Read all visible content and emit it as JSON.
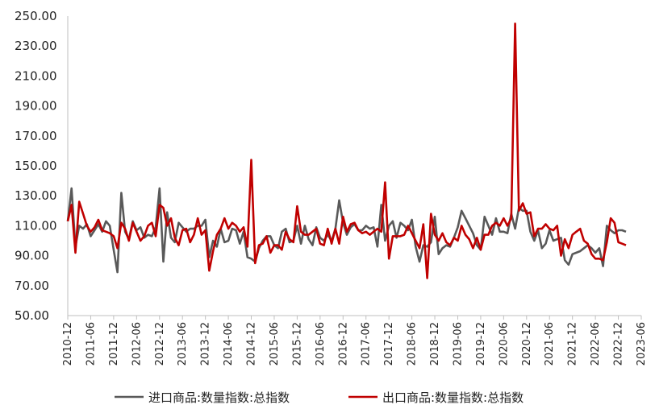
{
  "chart_data": {
    "type": "line",
    "yticks": [
      "250.00",
      "230.00",
      "210.00",
      "190.00",
      "170.00",
      "150.00",
      "130.00",
      "110.00",
      "90.00",
      "70.00",
      "50.00"
    ],
    "ylim": [
      50,
      250
    ],
    "xlim": [
      "2010-12",
      "2023-06"
    ],
    "x_tick_labels": [
      "2010-12",
      "2011-06",
      "2011-12",
      "2012-06",
      "2012-12",
      "2013-06",
      "2013-12",
      "2014-06",
      "2014-12",
      "2015-06",
      "2015-12",
      "2016-06",
      "2016-12",
      "2017-06",
      "2017-12",
      "2018-06",
      "2018-12",
      "2019-06",
      "2019-12",
      "2020-06",
      "2020-12",
      "2021-06",
      "2021-12",
      "2022-06",
      "2022-12",
      "2023-06"
    ],
    "legend_position": "bottom",
    "grid": false,
    "series": [
      {
        "name": "进口商品:数量指数:总指数",
        "color": "#595959",
        "points": [
          [
            "2010-12",
            113
          ],
          [
            "2011-01",
            135
          ],
          [
            "2011-02",
            96
          ],
          [
            "2011-03",
            110
          ],
          [
            "2011-04",
            108
          ],
          [
            "2011-05",
            111
          ],
          [
            "2011-06",
            103
          ],
          [
            "2011-07",
            107
          ],
          [
            "2011-08",
            111
          ],
          [
            "2011-09",
            106
          ],
          [
            "2011-10",
            113
          ],
          [
            "2011-11",
            110
          ],
          [
            "2011-12",
            94
          ],
          [
            "2012-01",
            79
          ],
          [
            "2012-02",
            132
          ],
          [
            "2012-03",
            106
          ],
          [
            "2012-04",
            101
          ],
          [
            "2012-05",
            113
          ],
          [
            "2012-06",
            107
          ],
          [
            "2012-07",
            109
          ],
          [
            "2012-08",
            102
          ],
          [
            "2012-09",
            104
          ],
          [
            "2012-10",
            103
          ],
          [
            "2012-11",
            109
          ],
          [
            "2012-12",
            135
          ],
          [
            "2013-01",
            86
          ],
          [
            "2013-02",
            119
          ],
          [
            "2013-03",
            102
          ],
          [
            "2013-04",
            99
          ],
          [
            "2013-05",
            112
          ],
          [
            "2013-06",
            109
          ],
          [
            "2013-07",
            106
          ],
          [
            "2013-08",
            108
          ],
          [
            "2013-09",
            108
          ],
          [
            "2013-10",
            110
          ],
          [
            "2013-11",
            110
          ],
          [
            "2013-12",
            114
          ],
          [
            "2014-01",
            89
          ],
          [
            "2014-02",
            100
          ],
          [
            "2014-03",
            96
          ],
          [
            "2014-04",
            108
          ],
          [
            "2014-05",
            99
          ],
          [
            "2014-06",
            100
          ],
          [
            "2014-07",
            108
          ],
          [
            "2014-08",
            107
          ],
          [
            "2014-09",
            98
          ],
          [
            "2014-10",
            106
          ],
          [
            "2014-11",
            89
          ],
          [
            "2014-12",
            88
          ],
          [
            "2015-01",
            86
          ],
          [
            "2015-02",
            95
          ],
          [
            "2015-03",
            100
          ],
          [
            "2015-04",
            103
          ],
          [
            "2015-05",
            103
          ],
          [
            "2015-06",
            97
          ],
          [
            "2015-07",
            95
          ],
          [
            "2015-08",
            106
          ],
          [
            "2015-09",
            108
          ],
          [
            "2015-10",
            99
          ],
          [
            "2015-11",
            100
          ],
          [
            "2015-12",
            110
          ],
          [
            "2016-01",
            98
          ],
          [
            "2016-02",
            110
          ],
          [
            "2016-03",
            101
          ],
          [
            "2016-04",
            97
          ],
          [
            "2016-05",
            109
          ],
          [
            "2016-06",
            102
          ],
          [
            "2016-07",
            100
          ],
          [
            "2016-08",
            104
          ],
          [
            "2016-09",
            100
          ],
          [
            "2016-10",
            108
          ],
          [
            "2016-11",
            127
          ],
          [
            "2016-12",
            112
          ],
          [
            "2017-01",
            104
          ],
          [
            "2017-02",
            109
          ],
          [
            "2017-03",
            111
          ],
          [
            "2017-04",
            107
          ],
          [
            "2017-05",
            107
          ],
          [
            "2017-06",
            110
          ],
          [
            "2017-07",
            108
          ],
          [
            "2017-08",
            109
          ],
          [
            "2017-09",
            96
          ],
          [
            "2017-10",
            124
          ],
          [
            "2017-11",
            100
          ],
          [
            "2017-12",
            110
          ],
          [
            "2018-01",
            113
          ],
          [
            "2018-02",
            102
          ],
          [
            "2018-03",
            112
          ],
          [
            "2018-04",
            110
          ],
          [
            "2018-05",
            107
          ],
          [
            "2018-06",
            114
          ],
          [
            "2018-07",
            96
          ],
          [
            "2018-08",
            86
          ],
          [
            "2018-09",
            97
          ],
          [
            "2018-10",
            96
          ],
          [
            "2018-11",
            99
          ],
          [
            "2018-12",
            116
          ],
          [
            "2019-01",
            91
          ],
          [
            "2019-02",
            95
          ],
          [
            "2019-03",
            97
          ],
          [
            "2019-04",
            96
          ],
          [
            "2019-05",
            102
          ],
          [
            "2019-06",
            109
          ],
          [
            "2019-07",
            120
          ],
          [
            "2019-08",
            115
          ],
          [
            "2019-09",
            110
          ],
          [
            "2019-10",
            105
          ],
          [
            "2019-11",
            97
          ],
          [
            "2019-12",
            94
          ],
          [
            "2020-01",
            116
          ],
          [
            "2020-02",
            110
          ],
          [
            "2020-03",
            104
          ],
          [
            "2020-04",
            115
          ],
          [
            "2020-05",
            106
          ],
          [
            "2020-06",
            106
          ],
          [
            "2020-07",
            105
          ],
          [
            "2020-08",
            118
          ],
          [
            "2020-09",
            108
          ],
          [
            "2020-10",
            122
          ],
          [
            "2020-11",
            120
          ],
          [
            "2020-12",
            120
          ],
          [
            "2021-01",
            106
          ],
          [
            "2021-02",
            100
          ],
          [
            "2021-03",
            107
          ],
          [
            "2021-04",
            95
          ],
          [
            "2021-05",
            98
          ],
          [
            "2021-06",
            107
          ],
          [
            "2021-07",
            100
          ],
          [
            "2021-08",
            101
          ],
          [
            "2021-09",
            102
          ],
          [
            "2021-10",
            87
          ],
          [
            "2021-11",
            84
          ],
          [
            "2021-12",
            91
          ],
          [
            "2022-01",
            92
          ],
          [
            "2022-02",
            93
          ],
          [
            "2022-03",
            95
          ],
          [
            "2022-04",
            97
          ],
          [
            "2022-05",
            95
          ],
          [
            "2022-06",
            92
          ],
          [
            "2022-07",
            95
          ],
          [
            "2022-08",
            83
          ],
          [
            "2022-09",
            110
          ],
          [
            "2022-10",
            107
          ],
          [
            "2022-11",
            105
          ],
          [
            "2022-12",
            107
          ],
          [
            "2023-01",
            107
          ],
          [
            "2023-02",
            106
          ]
        ]
      },
      {
        "name": "出口商品:数量指数:总指数",
        "color": "#c00000",
        "points": [
          [
            "2010-12",
            113
          ],
          [
            "2011-01",
            124
          ],
          [
            "2011-02",
            92
          ],
          [
            "2011-03",
            126
          ],
          [
            "2011-04",
            118
          ],
          [
            "2011-05",
            110
          ],
          [
            "2011-06",
            106
          ],
          [
            "2011-07",
            109
          ],
          [
            "2011-08",
            114
          ],
          [
            "2011-09",
            107
          ],
          [
            "2011-10",
            106
          ],
          [
            "2011-11",
            105
          ],
          [
            "2011-12",
            103
          ],
          [
            "2012-01",
            95
          ],
          [
            "2012-02",
            112
          ],
          [
            "2012-03",
            108
          ],
          [
            "2012-04",
            100
          ],
          [
            "2012-05",
            112
          ],
          [
            "2012-06",
            106
          ],
          [
            "2012-07",
            100
          ],
          [
            "2012-08",
            103
          ],
          [
            "2012-09",
            110
          ],
          [
            "2012-10",
            112
          ],
          [
            "2012-11",
            103
          ],
          [
            "2012-12",
            124
          ],
          [
            "2013-01",
            122
          ],
          [
            "2013-02",
            110
          ],
          [
            "2013-03",
            115
          ],
          [
            "2013-04",
            102
          ],
          [
            "2013-05",
            97
          ],
          [
            "2013-06",
            107
          ],
          [
            "2013-07",
            108
          ],
          [
            "2013-08",
            99
          ],
          [
            "2013-09",
            104
          ],
          [
            "2013-10",
            115
          ],
          [
            "2013-11",
            104
          ],
          [
            "2013-12",
            107
          ],
          [
            "2014-01",
            80
          ],
          [
            "2014-02",
            93
          ],
          [
            "2014-03",
            104
          ],
          [
            "2014-04",
            108
          ],
          [
            "2014-05",
            115
          ],
          [
            "2014-06",
            108
          ],
          [
            "2014-07",
            112
          ],
          [
            "2014-08",
            110
          ],
          [
            "2014-09",
            106
          ],
          [
            "2014-10",
            109
          ],
          [
            "2014-11",
            96
          ],
          [
            "2014-12",
            154
          ],
          [
            "2015-01",
            85
          ],
          [
            "2015-02",
            97
          ],
          [
            "2015-03",
            98
          ],
          [
            "2015-04",
            103
          ],
          [
            "2015-05",
            92
          ],
          [
            "2015-06",
            97
          ],
          [
            "2015-07",
            97
          ],
          [
            "2015-08",
            94
          ],
          [
            "2015-09",
            106
          ],
          [
            "2015-10",
            101
          ],
          [
            "2015-11",
            99
          ],
          [
            "2015-12",
            123
          ],
          [
            "2016-01",
            106
          ],
          [
            "2016-02",
            104
          ],
          [
            "2016-03",
            104
          ],
          [
            "2016-04",
            106
          ],
          [
            "2016-05",
            108
          ],
          [
            "2016-06",
            98
          ],
          [
            "2016-07",
            97
          ],
          [
            "2016-08",
            108
          ],
          [
            "2016-09",
            98
          ],
          [
            "2016-10",
            108
          ],
          [
            "2016-11",
            98
          ],
          [
            "2016-12",
            116
          ],
          [
            "2017-01",
            106
          ],
          [
            "2017-02",
            111
          ],
          [
            "2017-03",
            112
          ],
          [
            "2017-04",
            107
          ],
          [
            "2017-05",
            105
          ],
          [
            "2017-06",
            106
          ],
          [
            "2017-07",
            104
          ],
          [
            "2017-08",
            106
          ],
          [
            "2017-09",
            108
          ],
          [
            "2017-10",
            106
          ],
          [
            "2017-11",
            139
          ],
          [
            "2017-12",
            88
          ],
          [
            "2018-01",
            103
          ],
          [
            "2018-02",
            103
          ],
          [
            "2018-03",
            103
          ],
          [
            "2018-04",
            104
          ],
          [
            "2018-05",
            110
          ],
          [
            "2018-06",
            105
          ],
          [
            "2018-07",
            100
          ],
          [
            "2018-08",
            95
          ],
          [
            "2018-09",
            111
          ],
          [
            "2018-10",
            75
          ],
          [
            "2018-11",
            118
          ],
          [
            "2018-12",
            104
          ],
          [
            "2019-01",
            100
          ],
          [
            "2019-02",
            105
          ],
          [
            "2019-03",
            99
          ],
          [
            "2019-04",
            97
          ],
          [
            "2019-05",
            102
          ],
          [
            "2019-06",
            100
          ],
          [
            "2019-07",
            110
          ],
          [
            "2019-08",
            104
          ],
          [
            "2019-09",
            101
          ],
          [
            "2019-10",
            95
          ],
          [
            "2019-11",
            102
          ],
          [
            "2019-12",
            94
          ],
          [
            "2020-01",
            104
          ],
          [
            "2020-02",
            104
          ],
          [
            "2020-03",
            110
          ],
          [
            "2020-04",
            112
          ],
          [
            "2020-05",
            110
          ],
          [
            "2020-06",
            115
          ],
          [
            "2020-07",
            110
          ],
          [
            "2020-08",
            115
          ],
          [
            "2020-09",
            245
          ],
          [
            "2020-10",
            120
          ],
          [
            "2020-11",
            125
          ],
          [
            "2020-12",
            118
          ],
          [
            "2021-01",
            119
          ],
          [
            "2021-02",
            103
          ],
          [
            "2021-03",
            108
          ],
          [
            "2021-04",
            108
          ],
          [
            "2021-05",
            111
          ],
          [
            "2021-06",
            108
          ],
          [
            "2021-07",
            107
          ],
          [
            "2021-08",
            110
          ],
          [
            "2021-09",
            90
          ],
          [
            "2021-10",
            101
          ],
          [
            "2021-11",
            95
          ],
          [
            "2021-12",
            104
          ],
          [
            "2022-01",
            106
          ],
          [
            "2022-02",
            108
          ],
          [
            "2022-03",
            100
          ],
          [
            "2022-04",
            98
          ],
          [
            "2022-05",
            91
          ],
          [
            "2022-06",
            88
          ],
          [
            "2022-07",
            88
          ],
          [
            "2022-08",
            87
          ],
          [
            "2022-09",
            99
          ],
          [
            "2022-10",
            115
          ],
          [
            "2022-11",
            112
          ],
          [
            "2022-12",
            99
          ],
          [
            "2023-01",
            98
          ],
          [
            "2023-02",
            97
          ]
        ]
      }
    ]
  }
}
